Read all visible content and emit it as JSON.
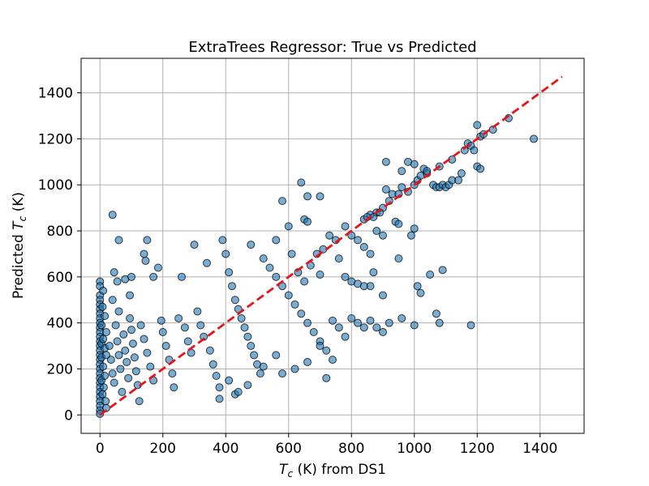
{
  "chart_data": {
    "type": "scatter",
    "title": "ExtraTrees Regressor: True vs Predicted",
    "xlabel": "T_c (K) from DS1",
    "xlabel_parts": {
      "var": "T",
      "sub": "c",
      "rest": " (K) from DS1"
    },
    "ylabel": "Predicted T_c (K)",
    "ylabel_parts": {
      "pre": "Predicted ",
      "var": "T",
      "sub": "c",
      "rest": " (K)"
    },
    "xlim": [
      -60,
      1540
    ],
    "ylim": [
      -80,
      1550
    ],
    "xticks": [
      0,
      200,
      400,
      600,
      800,
      1000,
      1200,
      1400
    ],
    "yticks": [
      0,
      200,
      400,
      600,
      800,
      1000,
      1200,
      1400
    ],
    "grid": true,
    "point_color": "#1f77b4",
    "reference_line": {
      "style": "dashed",
      "color": "#e8141c",
      "from": [
        0,
        0
      ],
      "to": [
        1470,
        1470
      ]
    },
    "points": [
      [
        0,
        580
      ],
      [
        0,
        560
      ],
      [
        0,
        520
      ],
      [
        0,
        500
      ],
      [
        0,
        480
      ],
      [
        0,
        460
      ],
      [
        0,
        440
      ],
      [
        0,
        420
      ],
      [
        0,
        400
      ],
      [
        0,
        380
      ],
      [
        0,
        360
      ],
      [
        0,
        340
      ],
      [
        0,
        320
      ],
      [
        0,
        300
      ],
      [
        0,
        280
      ],
      [
        0,
        260
      ],
      [
        0,
        240
      ],
      [
        0,
        220
      ],
      [
        0,
        200
      ],
      [
        0,
        180
      ],
      [
        0,
        160
      ],
      [
        0,
        140
      ],
      [
        0,
        120
      ],
      [
        0,
        100
      ],
      [
        0,
        80
      ],
      [
        0,
        60
      ],
      [
        0,
        40
      ],
      [
        0,
        20
      ],
      [
        0,
        5
      ],
      [
        5,
        390
      ],
      [
        5,
        310
      ],
      [
        5,
        250
      ],
      [
        5,
        150
      ],
      [
        8,
        470
      ],
      [
        8,
        90
      ],
      [
        10,
        540
      ],
      [
        10,
        330
      ],
      [
        10,
        210
      ],
      [
        12,
        120
      ],
      [
        15,
        430
      ],
      [
        15,
        290
      ],
      [
        15,
        170
      ],
      [
        18,
        60
      ],
      [
        20,
        360
      ],
      [
        20,
        260
      ],
      [
        20,
        30
      ],
      [
        40,
        870
      ],
      [
        60,
        760
      ],
      [
        45,
        620
      ],
      [
        55,
        580
      ],
      [
        40,
        500
      ],
      [
        60,
        450
      ],
      [
        80,
        590
      ],
      [
        100,
        600
      ],
      [
        95,
        520
      ],
      [
        30,
        300
      ],
      [
        35,
        240
      ],
      [
        40,
        180
      ],
      [
        45,
        140
      ],
      [
        50,
        390
      ],
      [
        55,
        320
      ],
      [
        60,
        260
      ],
      [
        65,
        200
      ],
      [
        70,
        100
      ],
      [
        75,
        350
      ],
      [
        80,
        280
      ],
      [
        85,
        230
      ],
      [
        90,
        160
      ],
      [
        95,
        420
      ],
      [
        100,
        370
      ],
      [
        105,
        310
      ],
      [
        110,
        250
      ],
      [
        115,
        190
      ],
      [
        120,
        130
      ],
      [
        125,
        60
      ],
      [
        130,
        390
      ],
      [
        140,
        330
      ],
      [
        150,
        270
      ],
      [
        160,
        210
      ],
      [
        170,
        150
      ],
      [
        140,
        700
      ],
      [
        145,
        670
      ],
      [
        150,
        760
      ],
      [
        170,
        600
      ],
      [
        185,
        640
      ],
      [
        195,
        410
      ],
      [
        200,
        360
      ],
      [
        210,
        300
      ],
      [
        220,
        240
      ],
      [
        230,
        180
      ],
      [
        235,
        120
      ],
      [
        250,
        420
      ],
      [
        260,
        600
      ],
      [
        270,
        380
      ],
      [
        280,
        320
      ],
      [
        290,
        270
      ],
      [
        300,
        740
      ],
      [
        310,
        450
      ],
      [
        320,
        390
      ],
      [
        330,
        340
      ],
      [
        340,
        660
      ],
      [
        350,
        280
      ],
      [
        360,
        220
      ],
      [
        370,
        170
      ],
      [
        380,
        120
      ],
      [
        390,
        760
      ],
      [
        400,
        700
      ],
      [
        410,
        620
      ],
      [
        420,
        560
      ],
      [
        430,
        500
      ],
      [
        440,
        460
      ],
      [
        450,
        420
      ],
      [
        460,
        380
      ],
      [
        470,
        340
      ],
      [
        480,
        300
      ],
      [
        490,
        260
      ],
      [
        500,
        220
      ],
      [
        510,
        180
      ],
      [
        480,
        740
      ],
      [
        520,
        680
      ],
      [
        540,
        640
      ],
      [
        560,
        600
      ],
      [
        580,
        560
      ],
      [
        600,
        520
      ],
      [
        620,
        480
      ],
      [
        640,
        440
      ],
      [
        660,
        400
      ],
      [
        680,
        360
      ],
      [
        700,
        320
      ],
      [
        720,
        280
      ],
      [
        740,
        240
      ],
      [
        430,
        90
      ],
      [
        440,
        100
      ],
      [
        380,
        70
      ],
      [
        410,
        150
      ],
      [
        470,
        130
      ],
      [
        520,
        210
      ],
      [
        560,
        260
      ],
      [
        580,
        180
      ],
      [
        620,
        200
      ],
      [
        660,
        230
      ],
      [
        700,
        300
      ],
      [
        720,
        160
      ],
      [
        580,
        930
      ],
      [
        600,
        820
      ],
      [
        640,
        1010
      ],
      [
        660,
        950
      ],
      [
        650,
        850
      ],
      [
        660,
        840
      ],
      [
        610,
        700
      ],
      [
        630,
        620
      ],
      [
        650,
        580
      ],
      [
        670,
        650
      ],
      [
        690,
        700
      ],
      [
        700,
        610
      ],
      [
        710,
        720
      ],
      [
        730,
        780
      ],
      [
        750,
        760
      ],
      [
        760,
        680
      ],
      [
        780,
        820
      ],
      [
        800,
        780
      ],
      [
        820,
        760
      ],
      [
        840,
        730
      ],
      [
        860,
        700
      ],
      [
        880,
        800
      ],
      [
        900,
        780
      ],
      [
        860,
        560
      ],
      [
        900,
        520
      ],
      [
        560,
        760
      ],
      [
        700,
        950
      ],
      [
        740,
        410
      ],
      [
        760,
        380
      ],
      [
        780,
        340
      ],
      [
        800,
        420
      ],
      [
        820,
        400
      ],
      [
        840,
        380
      ],
      [
        860,
        410
      ],
      [
        880,
        380
      ],
      [
        900,
        360
      ],
      [
        780,
        600
      ],
      [
        800,
        580
      ],
      [
        820,
        570
      ],
      [
        840,
        560
      ],
      [
        870,
        620
      ],
      [
        840,
        850
      ],
      [
        860,
        870
      ],
      [
        880,
        880
      ],
      [
        900,
        900
      ],
      [
        920,
        930
      ],
      [
        930,
        960
      ],
      [
        950,
        960
      ],
      [
        960,
        990
      ],
      [
        980,
        970
      ],
      [
        1000,
        1000
      ],
      [
        1010,
        1020
      ],
      [
        1020,
        1040
      ],
      [
        1030,
        1070
      ],
      [
        1040,
        1050
      ],
      [
        1060,
        1000
      ],
      [
        1070,
        990
      ],
      [
        1080,
        990
      ],
      [
        1090,
        1000
      ],
      [
        1100,
        990
      ],
      [
        1110,
        1000
      ],
      [
        1120,
        1020
      ],
      [
        1140,
        1020
      ],
      [
        1160,
        1150
      ],
      [
        1170,
        1180
      ],
      [
        1180,
        1170
      ],
      [
        1190,
        1150
      ],
      [
        1200,
        1260
      ],
      [
        1210,
        1210
      ],
      [
        1220,
        1220
      ],
      [
        1250,
        1240
      ],
      [
        1200,
        1080
      ],
      [
        1210,
        1070
      ],
      [
        1300,
        1290
      ],
      [
        910,
        1100
      ],
      [
        960,
        1060
      ],
      [
        980,
        1100
      ],
      [
        1000,
        1090
      ],
      [
        1040,
        1060
      ],
      [
        1080,
        1080
      ],
      [
        1120,
        1110
      ],
      [
        1150,
        1050
      ],
      [
        850,
        860
      ],
      [
        870,
        860
      ],
      [
        910,
        980
      ],
      [
        890,
        880
      ],
      [
        940,
        840
      ],
      [
        950,
        830
      ],
      [
        990,
        780
      ],
      [
        1000,
        810
      ],
      [
        920,
        400
      ],
      [
        960,
        420
      ],
      [
        1000,
        390
      ],
      [
        950,
        680
      ],
      [
        1010,
        560
      ],
      [
        1020,
        530
      ],
      [
        1050,
        610
      ],
      [
        1070,
        440
      ],
      [
        1080,
        400
      ],
      [
        1090,
        630
      ],
      [
        1180,
        390
      ],
      [
        1380,
        1200
      ]
    ]
  }
}
